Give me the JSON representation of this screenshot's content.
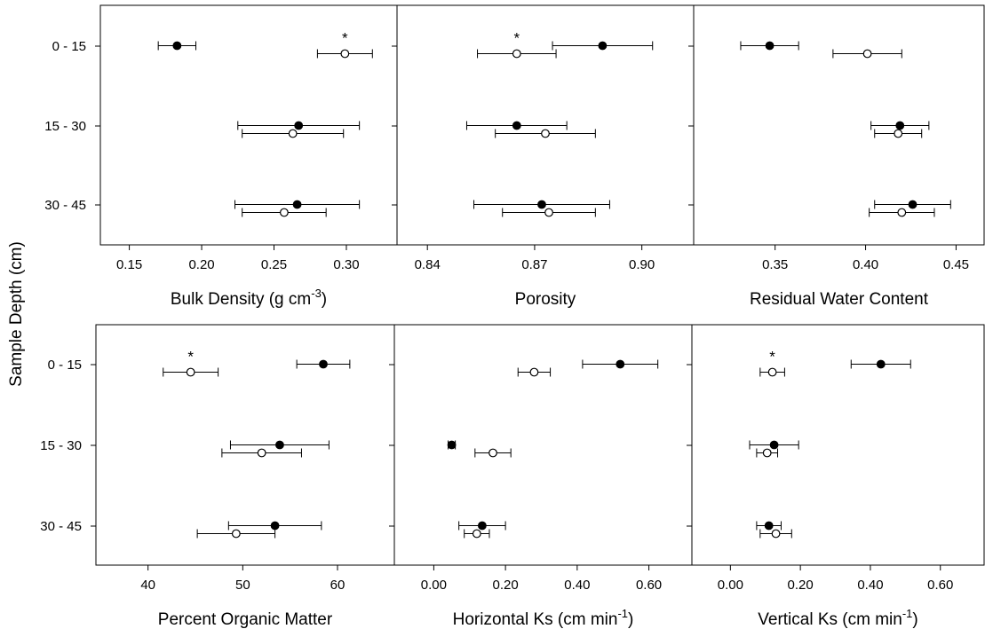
{
  "figure": {
    "shared_ylabel": "Sample Depth (cm)",
    "categories": [
      "0 - 15",
      "15 - 30",
      "30 - 45"
    ]
  },
  "chart_data": [
    {
      "type": "scatter",
      "xlabel": {
        "text": "Bulk Density (g cm",
        "sup": "-3",
        "tail": ")"
      },
      "xlim": [
        0.13,
        0.335
      ],
      "xticks": [
        0.15,
        0.2,
        0.25,
        0.3
      ],
      "xtick_labels": [
        "0.15",
        "0.20",
        "0.25",
        "0.30"
      ],
      "series": [
        {
          "marker": "filled",
          "values": [
            0.183,
            0.267,
            0.266
          ],
          "err": [
            0.013,
            0.042,
            0.043
          ]
        },
        {
          "marker": "open",
          "values": [
            0.299,
            0.263,
            0.257
          ],
          "err": [
            0.019,
            0.035,
            0.029
          ]
        }
      ],
      "annotations": [
        {
          "text": "*",
          "category": "0 - 15",
          "x": 0.299
        }
      ]
    },
    {
      "type": "scatter",
      "xlabel": {
        "text": "Porosity",
        "sup": "",
        "tail": ""
      },
      "xlim": [
        0.8315,
        0.9145
      ],
      "xticks": [
        0.84,
        0.87,
        0.9
      ],
      "xtick_labels": [
        "0.84",
        "0.87",
        "0.90"
      ],
      "series": [
        {
          "marker": "filled",
          "values": [
            0.889,
            0.865,
            0.872
          ],
          "err": [
            0.014,
            0.014,
            0.019
          ]
        },
        {
          "marker": "open",
          "values": [
            0.865,
            0.873,
            0.874
          ],
          "err": [
            0.011,
            0.014,
            0.013
          ]
        }
      ],
      "annotations": [
        {
          "text": "*",
          "category": "0 - 15",
          "x": 0.865
        }
      ]
    },
    {
      "type": "scatter",
      "xlabel": {
        "text": "Residual Water Content",
        "sup": "",
        "tail": ""
      },
      "xlim": [
        0.305,
        0.4655
      ],
      "xticks": [
        0.35,
        0.4,
        0.45
      ],
      "xtick_labels": [
        "0.35",
        "0.40",
        "0.45"
      ],
      "series": [
        {
          "marker": "filled",
          "values": [
            0.347,
            0.419,
            0.426
          ],
          "err": [
            0.016,
            0.016,
            0.021
          ]
        },
        {
          "marker": "open",
          "values": [
            0.401,
            0.418,
            0.42
          ],
          "err": [
            0.019,
            0.013,
            0.018
          ]
        }
      ],
      "annotations": []
    },
    {
      "type": "scatter",
      "xlabel": {
        "text": "Percent Organic Matter",
        "sup": "",
        "tail": ""
      },
      "xlim": [
        34.5,
        66.0
      ],
      "xticks": [
        40,
        50,
        60
      ],
      "xtick_labels": [
        "40",
        "50",
        "60"
      ],
      "series": [
        {
          "marker": "filled",
          "values": [
            58.5,
            53.9,
            53.4
          ],
          "err": [
            2.8,
            5.2,
            4.9
          ]
        },
        {
          "marker": "open",
          "values": [
            44.5,
            52.0,
            49.3
          ],
          "err": [
            2.9,
            4.2,
            4.1
          ]
        }
      ],
      "annotations": [
        {
          "text": "*",
          "category": "0 - 15",
          "x": 44.5
        }
      ]
    },
    {
      "type": "scatter",
      "xlabel": {
        "text": "Horizontal Ks (cm  min",
        "sup": "-1",
        "tail": ")"
      },
      "xlim": [
        -0.11,
        0.72
      ],
      "xticks": [
        0.0,
        0.2,
        0.4,
        0.6
      ],
      "xtick_labels": [
        "0.00",
        "0.20",
        "0.40",
        "0.60"
      ],
      "series": [
        {
          "marker": "filled",
          "values": [
            0.52,
            0.05,
            0.135
          ],
          "err": [
            0.105,
            0.01,
            0.065
          ]
        },
        {
          "marker": "open",
          "values": [
            0.28,
            0.165,
            0.12
          ],
          "err": [
            0.045,
            0.05,
            0.035
          ]
        }
      ],
      "annotations": []
    },
    {
      "type": "scatter",
      "xlabel": {
        "text": "Vertical Ks (cm min",
        "sup": "-1",
        "tail": ")"
      },
      "xlim": [
        -0.11,
        0.725
      ],
      "xticks": [
        0.0,
        0.2,
        0.4,
        0.6
      ],
      "xtick_labels": [
        "0.00",
        "0.20",
        "0.40",
        "0.60"
      ],
      "series": [
        {
          "marker": "filled",
          "values": [
            0.43,
            0.125,
            0.11
          ],
          "err": [
            0.085,
            0.07,
            0.035
          ]
        },
        {
          "marker": "open",
          "values": [
            0.12,
            0.105,
            0.13
          ],
          "err": [
            0.035,
            0.03,
            0.045
          ]
        }
      ],
      "annotations": [
        {
          "text": "*",
          "category": "0 - 15",
          "x": 0.12
        }
      ]
    }
  ]
}
